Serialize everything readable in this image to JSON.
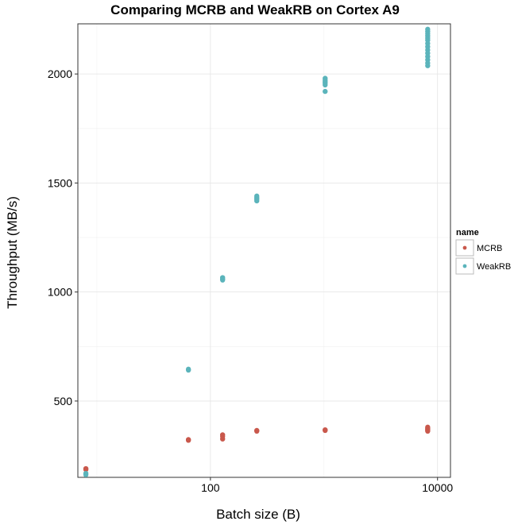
{
  "chart_data": {
    "type": "scatter",
    "title": "Comparing MCRB and WeakRB on Cortex A9",
    "xlabel": "Batch size (B)",
    "ylabel": "Throughput (MB/s)",
    "x_scale": "log10",
    "xlim": [
      6.8,
      13000
    ],
    "ylim": [
      150,
      2230
    ],
    "x_ticks": [
      100,
      10000
    ],
    "x_tick_labels": [
      "100",
      "10000"
    ],
    "y_ticks": [
      500,
      1000,
      1500,
      2000
    ],
    "y_tick_labels": [
      "500",
      "1000",
      "1500",
      "2000"
    ],
    "grid": true,
    "legend": {
      "title": "name",
      "position": "right"
    },
    "series": [
      {
        "name": "MCRB",
        "color": "#c9584c",
        "points": [
          [
            8,
            190
          ],
          [
            8,
            186
          ],
          [
            64,
            323
          ],
          [
            64,
            320
          ],
          [
            128,
            345
          ],
          [
            128,
            338
          ],
          [
            128,
            326
          ],
          [
            256,
            365
          ],
          [
            256,
            362
          ],
          [
            1024,
            368
          ],
          [
            1024,
            365
          ],
          [
            8192,
            380
          ],
          [
            8192,
            375
          ],
          [
            8192,
            370
          ],
          [
            8192,
            366
          ],
          [
            8192,
            362
          ]
        ]
      },
      {
        "name": "WeakRB",
        "color": "#5bb4bb",
        "points": [
          [
            8,
            168
          ],
          [
            8,
            162
          ],
          [
            64,
            646
          ],
          [
            64,
            642
          ],
          [
            128,
            1066
          ],
          [
            128,
            1060
          ],
          [
            128,
            1055
          ],
          [
            256,
            1440
          ],
          [
            256,
            1432
          ],
          [
            256,
            1425
          ],
          [
            256,
            1418
          ],
          [
            1024,
            1980
          ],
          [
            1024,
            1972
          ],
          [
            1024,
            1965
          ],
          [
            1024,
            1958
          ],
          [
            1024,
            1950
          ],
          [
            1024,
            1920
          ],
          [
            8192,
            2205
          ],
          [
            8192,
            2195
          ],
          [
            8192,
            2185
          ],
          [
            8192,
            2175
          ],
          [
            8192,
            2165
          ],
          [
            8192,
            2155
          ],
          [
            8192,
            2140
          ],
          [
            8192,
            2125
          ],
          [
            8192,
            2110
          ],
          [
            8192,
            2095
          ],
          [
            8192,
            2080
          ],
          [
            8192,
            2065
          ],
          [
            8192,
            2050
          ],
          [
            8192,
            2038
          ]
        ]
      }
    ]
  }
}
